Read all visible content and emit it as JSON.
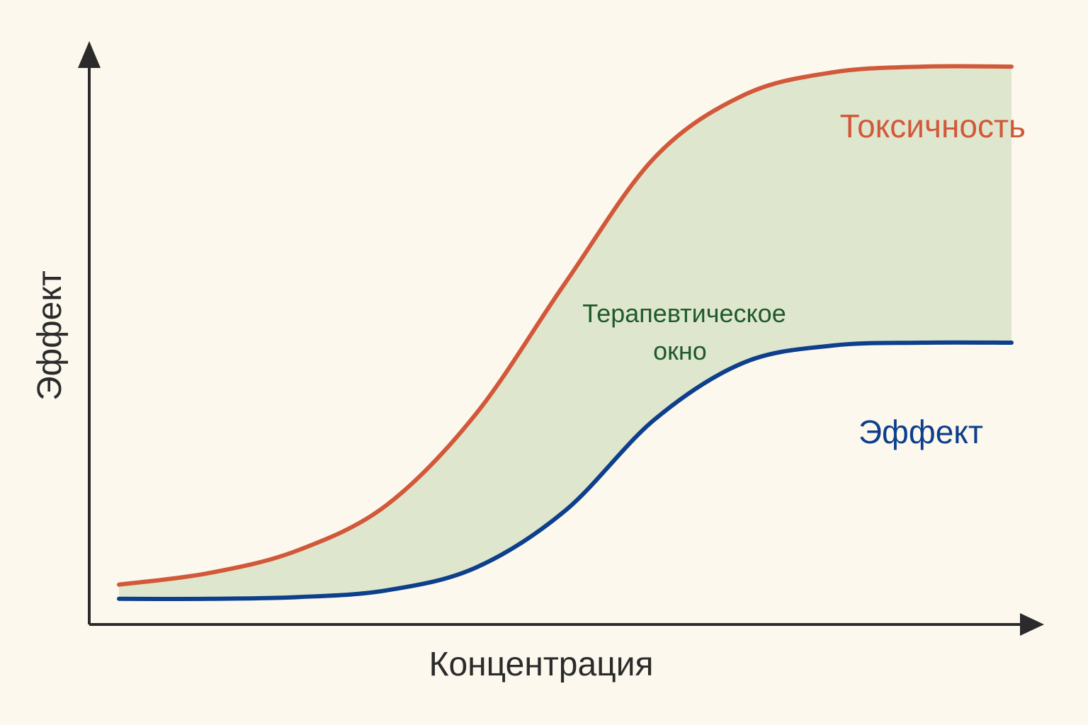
{
  "chart_data": {
    "type": "line",
    "title": "",
    "xlabel": "Концентрация",
    "ylabel": "Эффект",
    "xlim": [
      0,
      10
    ],
    "ylim": [
      0,
      10
    ],
    "grid": false,
    "x": [
      0,
      1,
      2,
      3,
      4,
      5,
      6,
      7,
      8,
      9,
      10
    ],
    "series": [
      {
        "name": "Токсичность",
        "color": "#d2583a",
        "values": [
          0.7,
          0.9,
          1.3,
          2.1,
          3.7,
          6.0,
          8.2,
          9.3,
          9.7,
          9.8,
          9.8
        ]
      },
      {
        "name": "Эффект",
        "color": "#0d3f8c",
        "values": [
          0.45,
          0.45,
          0.48,
          0.6,
          1.0,
          2.0,
          3.6,
          4.6,
          4.9,
          4.95,
          4.95
        ]
      }
    ],
    "annotations": [
      {
        "text_lines": [
          "Терапевтическое",
          "окно"
        ],
        "color": "#1e5a2a",
        "fill": "#d8e3c8"
      }
    ]
  }
}
